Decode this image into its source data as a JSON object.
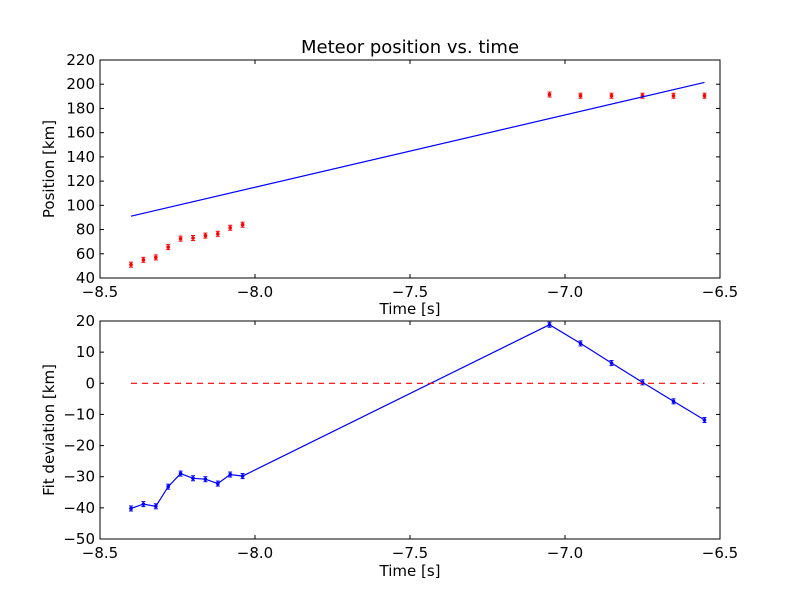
{
  "chart_data": [
    {
      "type": "scatter",
      "title": "Meteor position vs. time",
      "xlabel": "Time [s]",
      "ylabel": "Position [km]",
      "xlim": [
        -8.5,
        -6.5
      ],
      "ylim": [
        40,
        220
      ],
      "xticks": [
        -8.5,
        -8.0,
        -7.5,
        -7.0,
        -6.5
      ],
      "xtick_labels": [
        "−8.5",
        "−8.0",
        "−7.5",
        "−7.0",
        "−6.5"
      ],
      "yticks": [
        40,
        60,
        80,
        100,
        120,
        140,
        160,
        180,
        200,
        220
      ],
      "ytick_labels": [
        "40",
        "60",
        "80",
        "100",
        "120",
        "140",
        "160",
        "180",
        "200",
        "220"
      ],
      "grid": false,
      "series": [
        {
          "style": "points-with-errorbars",
          "color": "#ff0000",
          "x": [
            -8.4,
            -8.36,
            -8.32,
            -8.28,
            -8.24,
            -8.2,
            -8.16,
            -8.12,
            -8.08,
            -8.04,
            -7.05,
            -6.95,
            -6.85,
            -6.75,
            -6.65,
            -6.55
          ],
          "y": [
            51.0,
            55.0,
            57.0,
            65.5,
            72.5,
            73.0,
            75.0,
            76.5,
            81.5,
            84.0,
            191.5,
            190.5,
            190.5,
            190.5,
            190.5,
            190.5
          ]
        },
        {
          "style": "line",
          "color": "#0000ff",
          "x": [
            -8.4,
            -6.55
          ],
          "y": [
            91.0,
            201.5
          ]
        }
      ]
    },
    {
      "type": "line",
      "title": "",
      "xlabel": "Time [s]",
      "ylabel": "Fit deviation [km]",
      "xlim": [
        -8.5,
        -6.5
      ],
      "ylim": [
        -50,
        20
      ],
      "xticks": [
        -8.5,
        -8.0,
        -7.5,
        -7.0,
        -6.5
      ],
      "xtick_labels": [
        "−8.5",
        "−8.0",
        "−7.5",
        "−7.0",
        "−6.5"
      ],
      "yticks": [
        -50,
        -40,
        -30,
        -20,
        -10,
        0,
        10,
        20
      ],
      "ytick_labels": [
        "−50",
        "−40",
        "−30",
        "−20",
        "−10",
        "0",
        "10",
        "20"
      ],
      "grid": false,
      "series": [
        {
          "style": "line-with-errorbars",
          "color": "#0000ff",
          "x": [
            -8.4,
            -8.36,
            -8.32,
            -8.28,
            -8.24,
            -8.2,
            -8.16,
            -8.12,
            -8.08,
            -8.04,
            -7.05,
            -6.95,
            -6.85,
            -6.75,
            -6.65,
            -6.55
          ],
          "y": [
            -40.2,
            -38.8,
            -39.5,
            -33.2,
            -29.0,
            -30.5,
            -30.8,
            -32.2,
            -29.3,
            -29.8,
            18.8,
            12.8,
            6.5,
            0.3,
            -5.8,
            -11.8
          ]
        },
        {
          "style": "dashed-line",
          "color": "#ff0000",
          "x": [
            -8.4,
            -6.55
          ],
          "y": [
            0,
            0
          ]
        }
      ]
    }
  ]
}
